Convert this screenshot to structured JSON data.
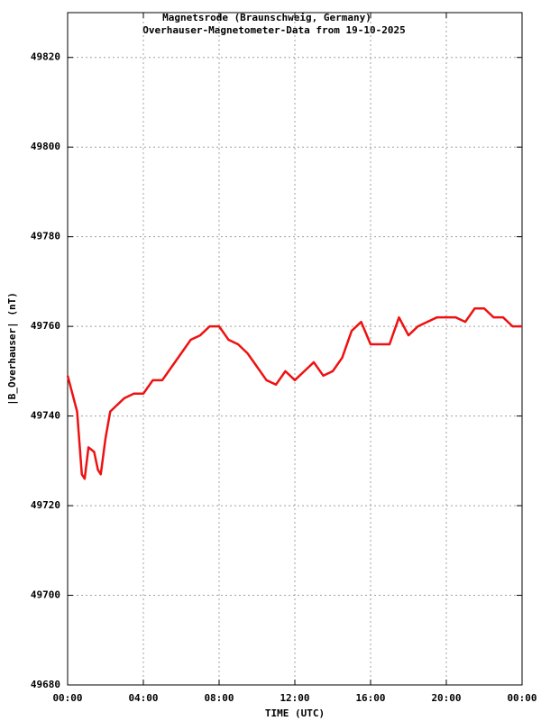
{
  "chart_data": {
    "type": "line",
    "title": "Magnetsrode (Braunschweig, Germany)",
    "subtitle": "Overhauser-Magnetometer-Data from 19-10-2025",
    "x_label": "TIME (UTC)",
    "y_label": "|B_Overhauser| (nT)",
    "x": [
      0,
      0.25,
      0.5,
      0.75,
      0.9,
      1.1,
      1.4,
      1.6,
      1.75,
      2,
      2.25,
      2.5,
      3,
      3.5,
      4,
      4.5,
      5,
      5.5,
      6,
      6.5,
      7,
      7.5,
      8,
      8.5,
      9,
      9.5,
      10,
      10.5,
      11,
      11.5,
      12,
      12.5,
      13,
      13.5,
      14,
      14.5,
      15,
      15.5,
      16,
      16.5,
      17,
      17.5,
      18,
      18.5,
      19,
      19.5,
      20,
      20.5,
      21,
      21.5,
      22,
      22.5,
      23,
      23.5,
      24
    ],
    "series": [
      {
        "name": "|B_Overhauser|",
        "color": "#ee1111",
        "values": [
          49749,
          49745,
          49741,
          49727,
          49726,
          49733,
          49732,
          49728,
          49727,
          49735,
          49741,
          49742,
          49744,
          49745,
          49745,
          49748,
          49748,
          49751,
          49754,
          49757,
          49758,
          49760,
          49760,
          49757,
          49756,
          49754,
          49751,
          49748,
          49747,
          49750,
          49748,
          49750,
          49752,
          49749,
          49750,
          49753,
          49759,
          49761,
          49756,
          49756,
          49756,
          49762,
          49758,
          49760,
          49761,
          49762,
          49762,
          49762,
          49761,
          49764,
          49764,
          49762,
          49762,
          49760,
          49760
        ]
      }
    ],
    "xlim": [
      0,
      24
    ],
    "xticks": [
      {
        "value": 0,
        "label": "00:00"
      },
      {
        "value": 4,
        "label": "04:00"
      },
      {
        "value": 8,
        "label": "08:00"
      },
      {
        "value": 12,
        "label": "12:00"
      },
      {
        "value": 16,
        "label": "16:00"
      },
      {
        "value": 20,
        "label": "20:00"
      },
      {
        "value": 24,
        "label": "00:00"
      }
    ],
    "ylim": [
      49680,
      49830
    ],
    "yticks": [
      49680,
      49700,
      49720,
      49740,
      49760,
      49780,
      49800,
      49820
    ],
    "grid": true
  }
}
